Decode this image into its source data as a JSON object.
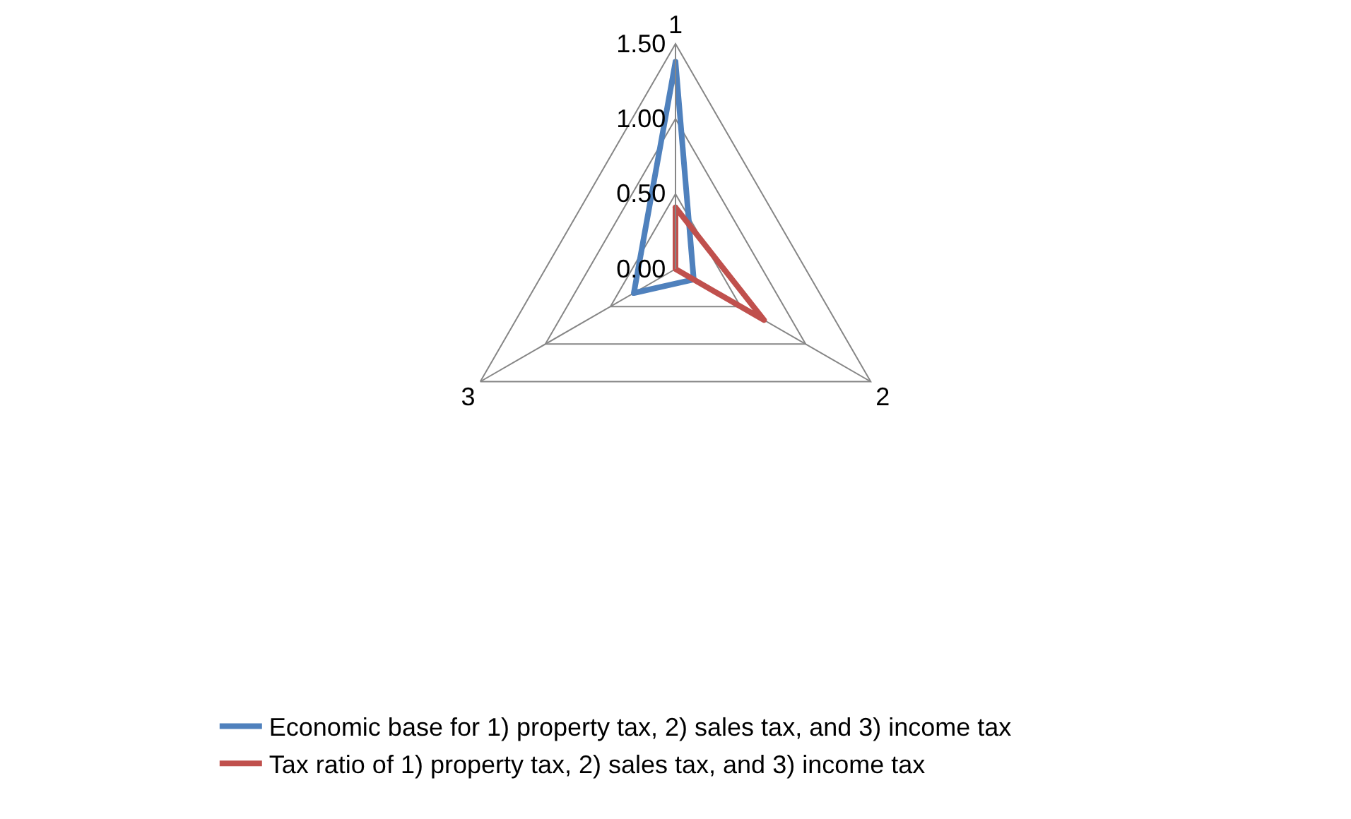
{
  "chart_data": {
    "type": "radar",
    "categories": [
      "1",
      "2",
      "3"
    ],
    "series": [
      {
        "name": "Economic base for 1) property tax, 2) sales tax, and 3) income tax",
        "color": "#4f81bd",
        "values": [
          1.38,
          0.14,
          0.32
        ]
      },
      {
        "name": "Tax ratio of 1) property tax, 2) sales tax, and 3) income tax",
        "color": "#c0504d",
        "values": [
          0.41,
          0.68,
          0.0
        ]
      }
    ],
    "ylim": [
      0,
      1.5
    ],
    "yticks": [
      {
        "value": 0,
        "label": "0.00"
      },
      {
        "value": 0.5,
        "label": "0.50"
      },
      {
        "value": 1,
        "label": "1.00"
      },
      {
        "value": 1.5,
        "label": "1.50"
      }
    ],
    "grid": true,
    "legend": "bottom",
    "marker": "none"
  }
}
